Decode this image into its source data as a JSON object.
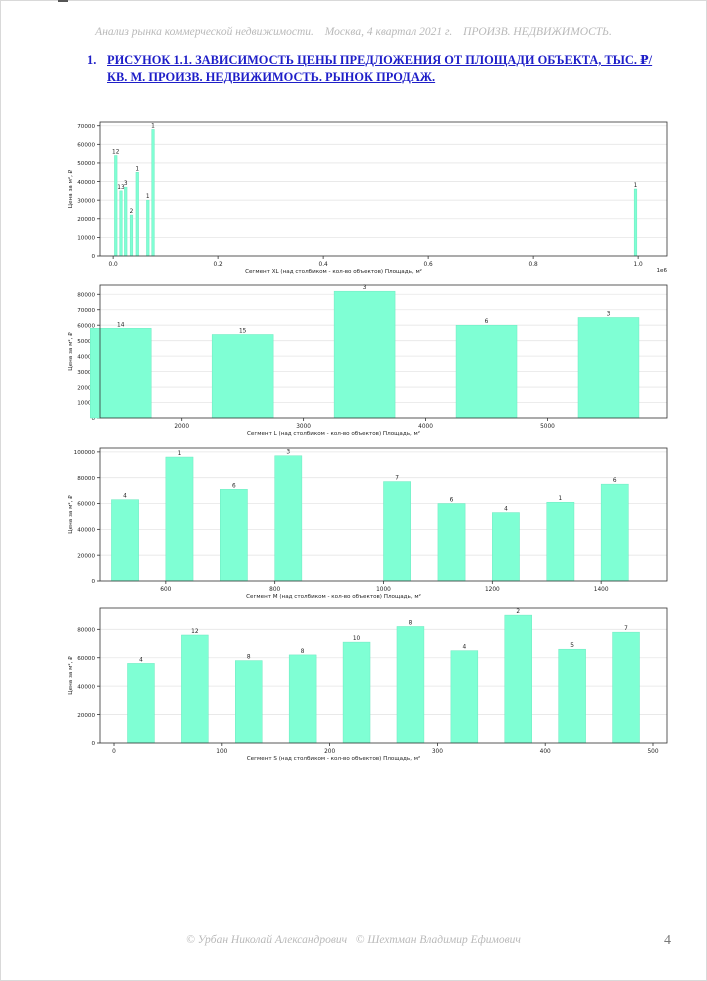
{
  "header": {
    "report_title": "Анализ рынка коммерческой недвижимости.",
    "location_period": "Москва,  4 квартал 2021 г.",
    "segment": "ПРОИЗВ. НЕДВИЖИМОСТЬ."
  },
  "figure": {
    "number": "1.",
    "title": "РИСУНОК 1.1. ЗАВИСИМОСТЬ ЦЕНЫ ПРЕДЛОЖЕНИЯ ОТ ПЛОЩАДИ ОБЪЕКТА, ТЫС. ₽/КВ. М. ПРОИЗВ. НЕДВИЖИМОСТЬ. РЫНОК ПРОДАЖ."
  },
  "colors": {
    "bar": "#7fffd4",
    "bar_edge": "#6ee8c0",
    "axis": "#333333",
    "grid": "#e6e6e6"
  },
  "chart_data": [
    {
      "type": "bar",
      "xlabel": "Сегмент XL (над столбиком - кол-во объектов)   Площадь, м²",
      "ylabel": "Цена за м², ₽",
      "xlim": [
        -25000,
        1055000
      ],
      "ylim": [
        0,
        72000
      ],
      "x_scale_label": "1e6",
      "bar_width": 5000,
      "xticks": [
        0,
        200000,
        400000,
        600000,
        800000,
        1000000
      ],
      "xtick_labels": [
        "0.0",
        "0.2",
        "0.4",
        "0.6",
        "0.8",
        "1.0"
      ],
      "yticks": [
        0,
        10000,
        20000,
        30000,
        40000,
        50000,
        60000,
        70000
      ],
      "bars": [
        {
          "x": 5000,
          "value": 54000,
          "label": "12"
        },
        {
          "x": 15000,
          "value": 35000,
          "label": "13"
        },
        {
          "x": 24000,
          "value": 37000,
          "label": "3"
        },
        {
          "x": 35000,
          "value": 22000,
          "label": "2"
        },
        {
          "x": 46000,
          "value": 45000,
          "label": "1"
        },
        {
          "x": 66000,
          "value": 30000,
          "label": "1"
        },
        {
          "x": 76000,
          "value": 68000,
          "label": "1"
        },
        {
          "x": 995000,
          "value": 36000,
          "label": "1"
        }
      ]
    },
    {
      "type": "bar",
      "xlabel": "Сегмент L (над столбиком - кол-во объектов)   Площадь, м²",
      "ylabel": "Цена за м², ₽",
      "xlim": [
        1330,
        5980
      ],
      "ylim": [
        0,
        86000
      ],
      "bar_width": 500,
      "xticks": [
        2000,
        3000,
        4000,
        5000
      ],
      "xtick_labels": [
        "2000",
        "3000",
        "4000",
        "5000"
      ],
      "yticks": [
        0,
        10000,
        20000,
        30000,
        40000,
        50000,
        60000,
        70000,
        80000
      ],
      "bars": [
        {
          "x": 1500,
          "value": 58000,
          "label": "14"
        },
        {
          "x": 2500,
          "value": 54000,
          "label": "15"
        },
        {
          "x": 3500,
          "value": 82000,
          "label": "3"
        },
        {
          "x": 4500,
          "value": 60000,
          "label": "6"
        },
        {
          "x": 5500,
          "value": 65000,
          "label": "3"
        }
      ]
    },
    {
      "type": "bar",
      "xlabel": "Сегмент M (над столбиком - кол-во объектов)   Площадь, м²",
      "ylabel": "Цена за м², ₽",
      "xlim": [
        479,
        1521
      ],
      "ylim": [
        0,
        103000
      ],
      "bar_width": 50,
      "xticks": [
        600,
        800,
        1000,
        1200,
        1400
      ],
      "xtick_labels": [
        "600",
        "800",
        "1000",
        "1200",
        "1400"
      ],
      "yticks": [
        0,
        20000,
        40000,
        60000,
        80000,
        100000
      ],
      "bars": [
        {
          "x": 525,
          "value": 63000,
          "label": "4"
        },
        {
          "x": 625,
          "value": 96000,
          "label": "1"
        },
        {
          "x": 725,
          "value": 71000,
          "label": "6"
        },
        {
          "x": 825,
          "value": 97000,
          "label": "3"
        },
        {
          "x": 1025,
          "value": 77000,
          "label": "7"
        },
        {
          "x": 1125,
          "value": 60000,
          "label": "6"
        },
        {
          "x": 1225,
          "value": 53000,
          "label": "4"
        },
        {
          "x": 1325,
          "value": 61000,
          "label": "1"
        },
        {
          "x": 1425,
          "value": 75000,
          "label": "6"
        }
      ]
    },
    {
      "type": "bar",
      "xlabel": "Сегмент S (над столбиком - кол-во объектов)   Площадь, м²",
      "ylabel": "Цена за м², ₽",
      "xlim": [
        -13,
        513
      ],
      "ylim": [
        0,
        95000
      ],
      "bar_width": 25,
      "xticks": [
        0,
        100,
        200,
        300,
        400,
        500
      ],
      "xtick_labels": [
        "0",
        "100",
        "200",
        "300",
        "400",
        "500"
      ],
      "yticks": [
        0,
        20000,
        40000,
        60000,
        80000
      ],
      "bars": [
        {
          "x": 25,
          "value": 56000,
          "label": "4"
        },
        {
          "x": 75,
          "value": 76000,
          "label": "12"
        },
        {
          "x": 125,
          "value": 58000,
          "label": "8"
        },
        {
          "x": 175,
          "value": 62000,
          "label": "8"
        },
        {
          "x": 225,
          "value": 71000,
          "label": "10"
        },
        {
          "x": 275,
          "value": 82000,
          "label": "8"
        },
        {
          "x": 325,
          "value": 65000,
          "label": "4"
        },
        {
          "x": 375,
          "value": 90000,
          "label": "2"
        },
        {
          "x": 425,
          "value": 66000,
          "label": "5"
        },
        {
          "x": 475,
          "value": 78000,
          "label": "7"
        }
      ]
    }
  ],
  "footer": {
    "author1": "© Урбан Николай Александрович",
    "author2": "© Шехтман Владимир Ефимович",
    "page_number": "4"
  }
}
